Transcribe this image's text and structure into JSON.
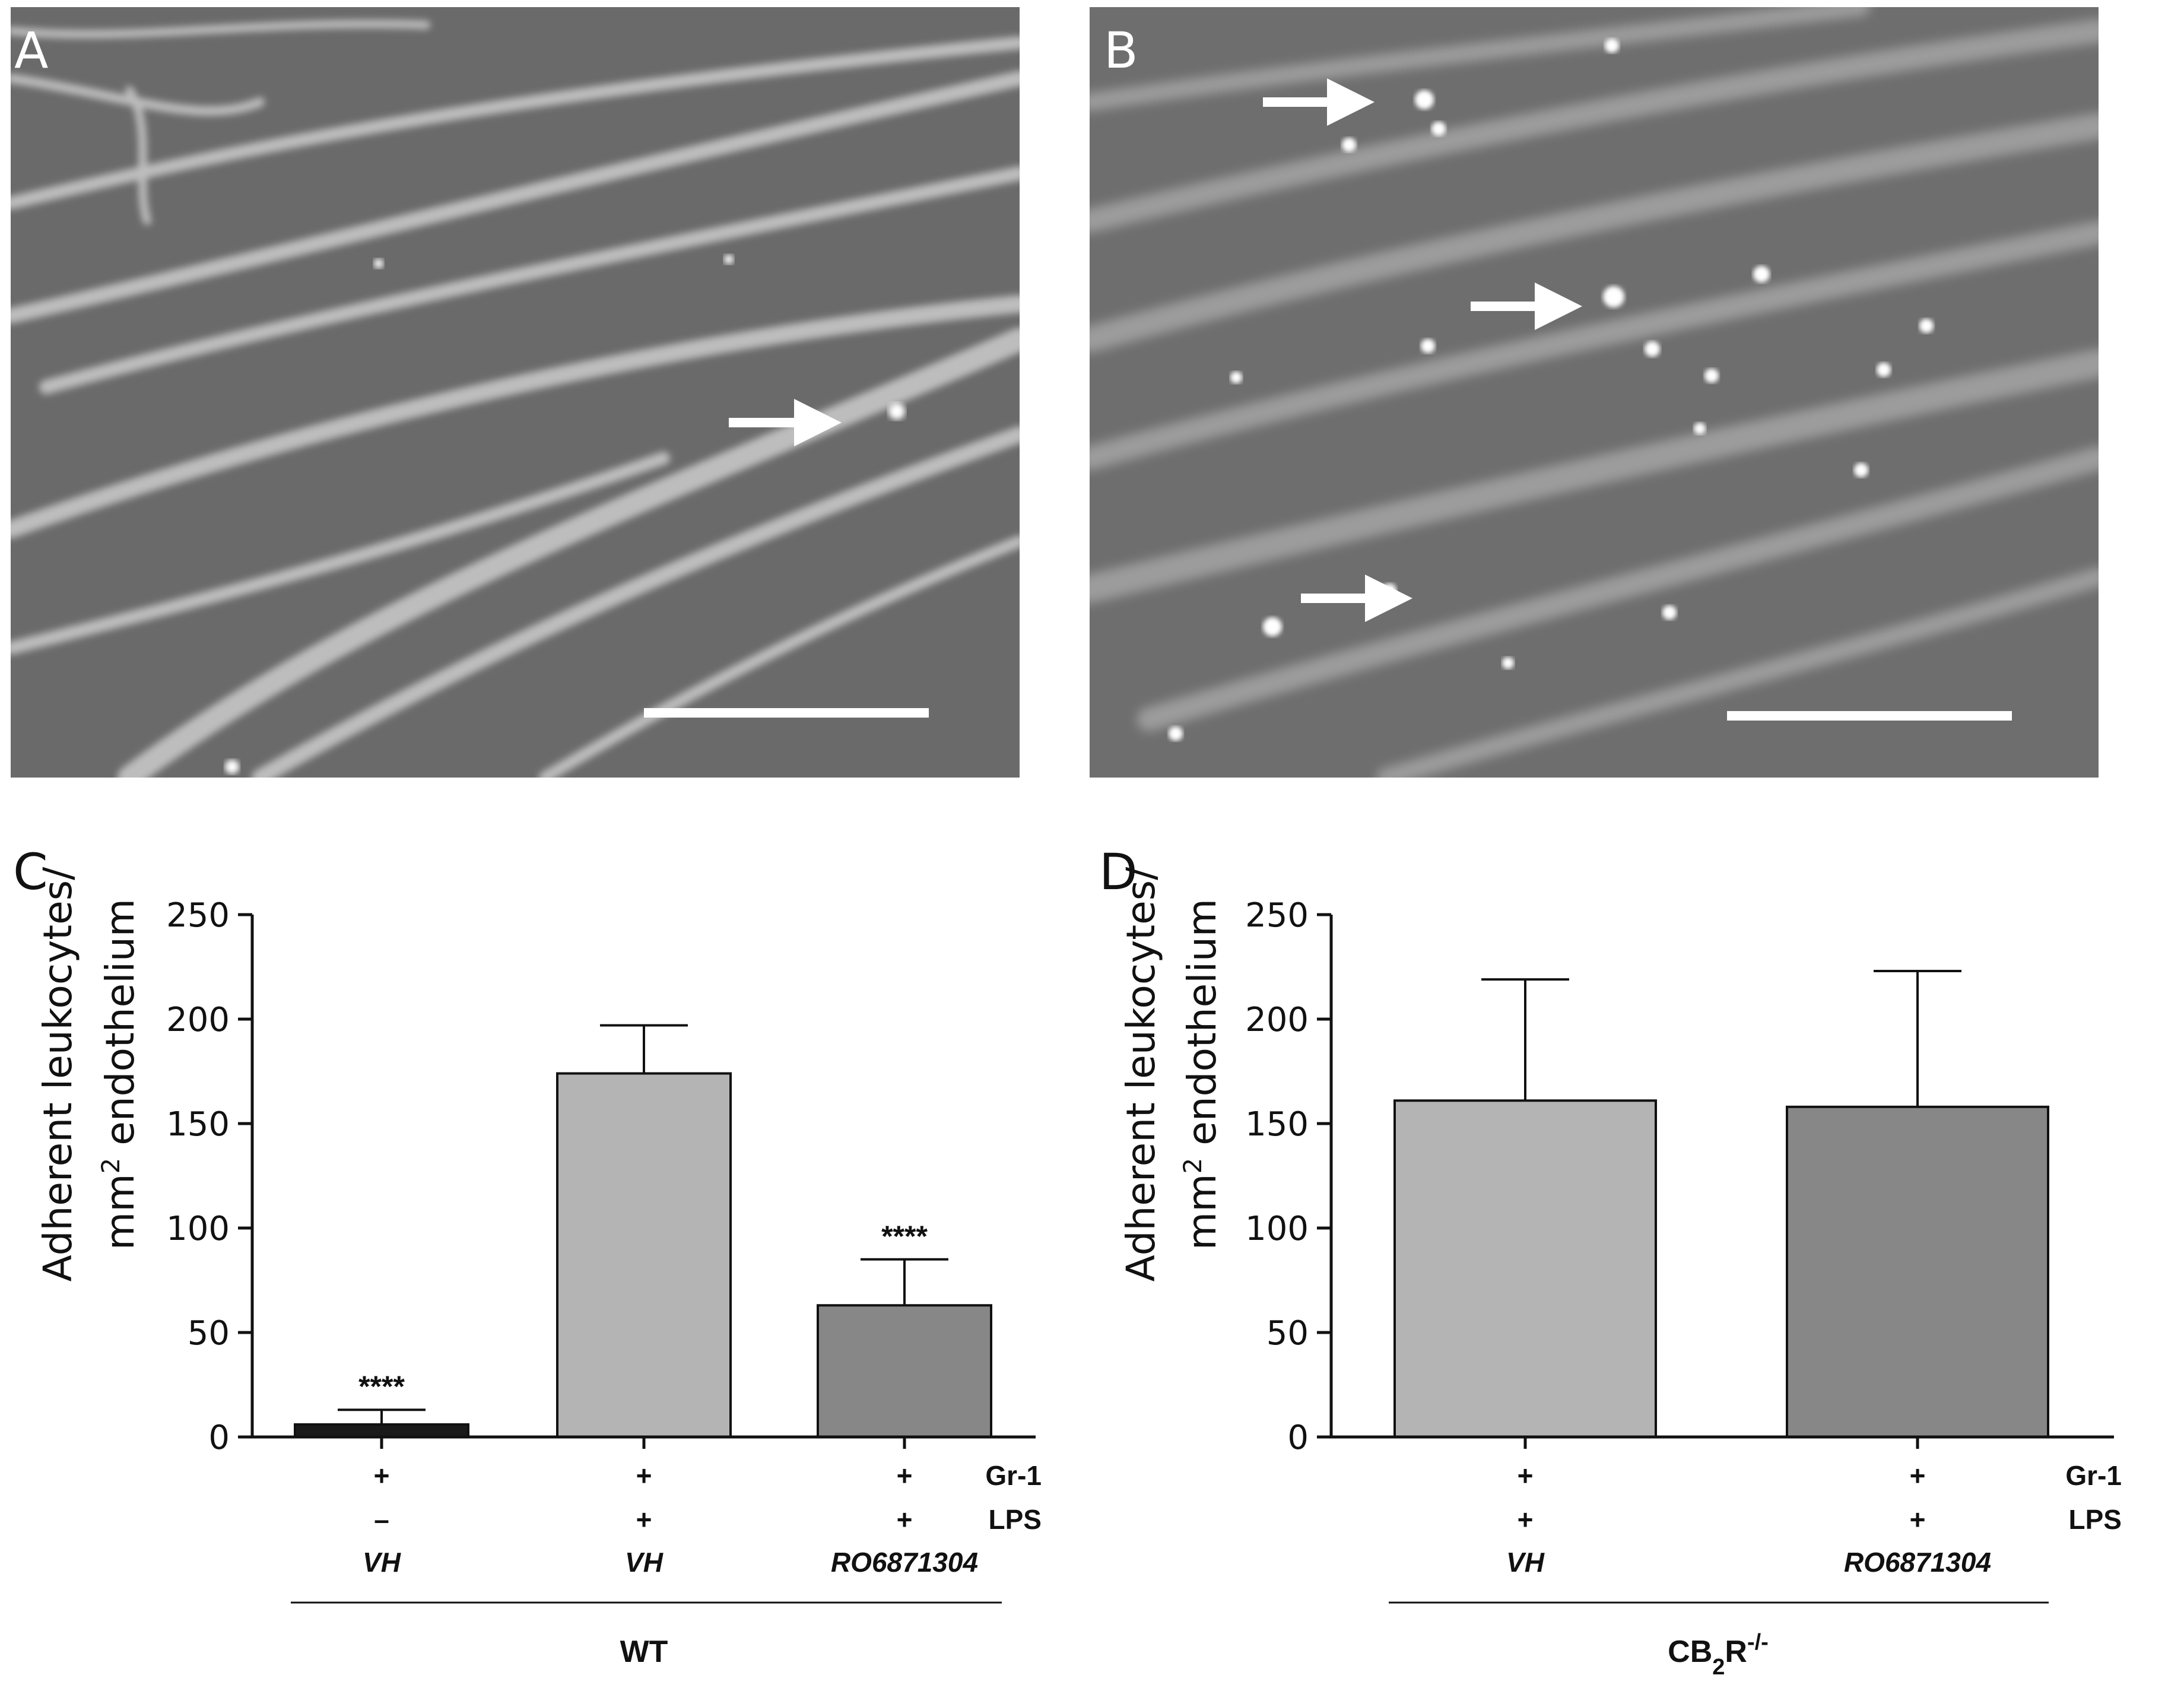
{
  "panels": {
    "a": {
      "letter": "A",
      "arrow_count": 1
    },
    "b": {
      "letter": "B",
      "arrow_count": 3
    },
    "c": {
      "letter": "C"
    },
    "d": {
      "letter": "D"
    }
  },
  "colors": {
    "bar_dark": "#1a1a1a",
    "bar_light": "#b4b4b5",
    "bar_mid": "#878787",
    "micrograph_bg": "#6b6b6b",
    "vessel": "#c6c6c6",
    "arrow": "#ffffff"
  },
  "chart_data": [
    {
      "type": "bar",
      "panel": "C",
      "ylabel_line1": "Adherent leukocytes/",
      "ylabel_line2_pre": "mm",
      "ylabel_line2_sup": "2",
      "ylabel_line2_post": " endothelium",
      "ylim": [
        0,
        250
      ],
      "yticks": [
        0,
        50,
        100,
        150,
        200,
        250
      ],
      "row_labels": [
        "Gr-1",
        "LPS"
      ],
      "categories": [
        {
          "gr1": "+",
          "lps": "–",
          "treatment": "VH",
          "value": 6,
          "error": 13,
          "sig": "****",
          "color": "#1a1a1a"
        },
        {
          "gr1": "+",
          "lps": "+",
          "treatment": "VH",
          "value": 174,
          "error": 197,
          "sig": "",
          "color": "#b4b4b5"
        },
        {
          "gr1": "+",
          "lps": "+",
          "treatment": "RO6871304",
          "value": 63,
          "error": 85,
          "sig": "****",
          "color": "#878787"
        }
      ],
      "group": "WT",
      "group_sub": "",
      "group_sup": "",
      "group_tail": ""
    },
    {
      "type": "bar",
      "panel": "D",
      "ylabel_line1": "Adherent leukocytes/",
      "ylabel_line2_pre": "mm",
      "ylabel_line2_sup": "2",
      "ylabel_line2_post": " endothelium",
      "ylim": [
        0,
        250
      ],
      "yticks": [
        0,
        50,
        100,
        150,
        200,
        250
      ],
      "row_labels": [
        "Gr-1",
        "LPS"
      ],
      "categories": [
        {
          "gr1": "+",
          "lps": "+",
          "treatment": "VH",
          "value": 161,
          "error": 219,
          "sig": "",
          "color": "#b4b4b5"
        },
        {
          "gr1": "+",
          "lps": "+",
          "treatment": "RO6871304",
          "value": 158,
          "error": 223,
          "sig": "",
          "color": "#878787"
        }
      ],
      "group": "CB",
      "group_sub": "2",
      "group_sup": "-/-",
      "group_tail": "R"
    }
  ]
}
